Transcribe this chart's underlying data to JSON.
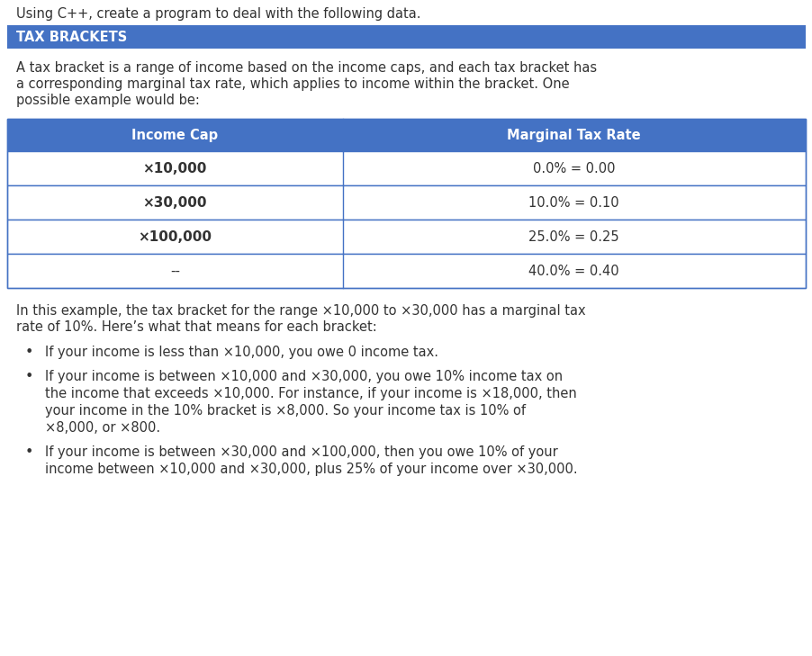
{
  "top_text": "Using C++, create a program to deal with the following data.",
  "header_bg": "#4472c4",
  "header_text": "TAX BRACKETS",
  "header_text_color": "#ffffff",
  "intro_text": "A tax bracket is a range of income based on the income caps, and each tax bracket has\na corresponding marginal tax rate, which applies to income within the bracket. One\npossible example would be:",
  "table_col_headers": [
    "Income Cap",
    "Marginal Tax Rate"
  ],
  "table_col_header_bg": "#4472c4",
  "table_col_header_text_color": "#ffffff",
  "table_rows": [
    [
      "×10,000",
      "0.0% = 0.00"
    ],
    [
      "×30,000",
      "10.0% = 0.10"
    ],
    [
      "×100,000",
      "25.0% = 0.25"
    ],
    [
      "--",
      "40.0% = 0.40"
    ]
  ],
  "table_border_color": "#4472c4",
  "body_text": "In this example, the tax bracket for the range ×10,000 to ×30,000 has a marginal tax\nrate of 10%. Here’s what that means for each bracket:",
  "bullets": [
    "If your income is less than ×10,000, you owe 0 income tax.",
    "If your income is between ×10,000 and ×30,000, you owe 10% income tax on\nthe income that exceeds ×10,000. For instance, if your income is ×18,000, then\nyour income in the 10% bracket is ×8,000. So your income tax is 10% of\n×8,000, or ×800.",
    "If your income is between ×30,000 and ×100,000, then you owe 10% of your\nincome between ×10,000 and ×30,000, plus 25% of your income over ×30,000."
  ],
  "bg_color": "#ffffff",
  "text_color": "#333333",
  "font_size_body": 10.5,
  "font_size_header": 10.5,
  "font_size_table": 10.5
}
